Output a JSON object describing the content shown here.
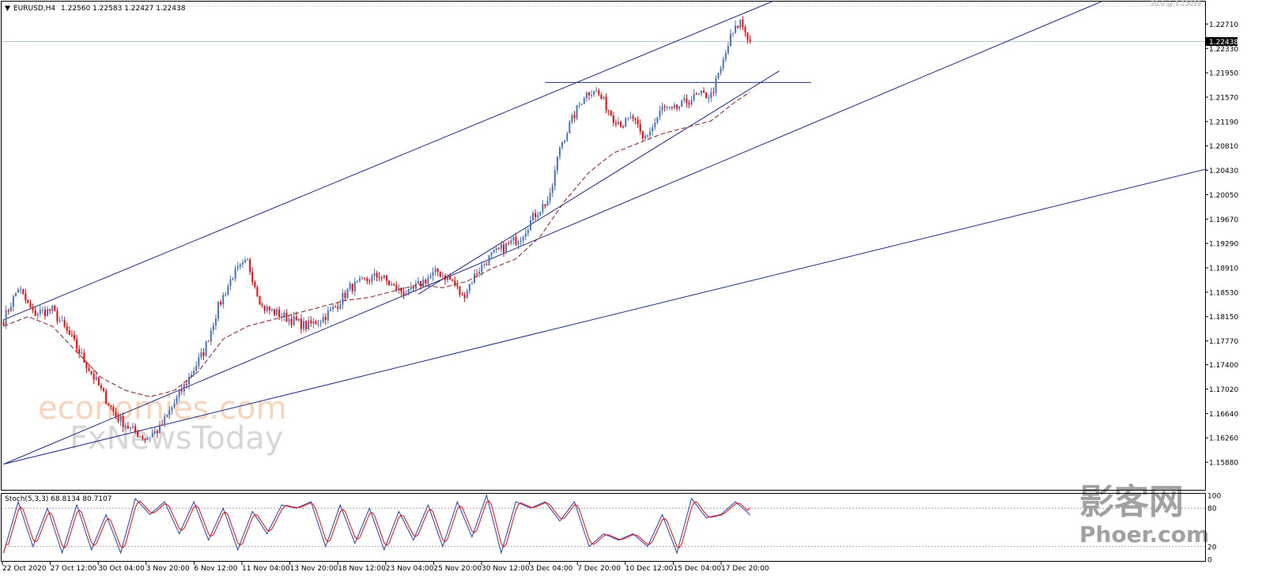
{
  "header": {
    "symbol_label": "EURUSD,H4",
    "ohlc": "1.22560 1.22583 1.22427 1.22438"
  },
  "fib_label": "50.0 @ 1.23059",
  "stoch": {
    "label": "Stoch(5,3,3) 68.8134 80.7107",
    "levels": [
      "100",
      "80",
      "20",
      "0"
    ]
  },
  "watermarks": {
    "brand1": "economies.com",
    "brand2": "FxNewsToday",
    "brand3": "影客网",
    "brand4": "Phoer.com"
  },
  "colors": {
    "bull": "#4472c4",
    "bear": "#ff0000",
    "trendline": "#1f2a8c",
    "ma": "#8b1a1a",
    "stoch_main": "#1f3fc8",
    "stoch_signal": "#ff0000",
    "current_price_bg": "#000000"
  },
  "chart_data": {
    "type": "candlestick",
    "symbol": "EURUSD",
    "timeframe": "H4",
    "last_price": "1.22438",
    "y_range": [
      1.1545,
      1.2306
    ],
    "y_ticks": [
      "1.22710",
      "1.22330",
      "1.21950",
      "1.21570",
      "1.21190",
      "1.20810",
      "1.20430",
      "1.20050",
      "1.19670",
      "1.19290",
      "1.18910",
      "1.18530",
      "1.18150",
      "1.17770",
      "1.17400",
      "1.17020",
      "1.16640",
      "1.16260",
      "1.15880"
    ],
    "x_ticks": [
      "22 Oct 2020",
      "27 Oct 12:00",
      "30 Oct 04:00",
      "3 Nov 20:00",
      "6 Nov 12:00",
      "11 Nov 04:00",
      "13 Nov 20:00",
      "18 Nov 12:00",
      "23 Nov 04:00",
      "25 Nov 20:00",
      "30 Nov 12:00",
      "3 Dec 04:00",
      "7 Dec 20:00",
      "10 Dec 12:00",
      "15 Dec 04:00",
      "17 Dec 20:00"
    ],
    "close_anchors": [
      [
        0,
        1.181
      ],
      [
        6,
        1.186
      ],
      [
        12,
        1.182
      ],
      [
        20,
        1.1825
      ],
      [
        28,
        1.178
      ],
      [
        34,
        1.174
      ],
      [
        40,
        1.17
      ],
      [
        46,
        1.166
      ],
      [
        52,
        1.164
      ],
      [
        58,
        1.1625
      ],
      [
        64,
        1.164
      ],
      [
        70,
        1.168
      ],
      [
        76,
        1.172
      ],
      [
        82,
        1.176
      ],
      [
        88,
        1.183
      ],
      [
        94,
        1.188
      ],
      [
        100,
        1.19
      ],
      [
        106,
        1.183
      ],
      [
        112,
        1.182
      ],
      [
        118,
        1.181
      ],
      [
        124,
        1.18
      ],
      [
        130,
        1.181
      ],
      [
        136,
        1.183
      ],
      [
        142,
        1.186
      ],
      [
        148,
        1.187
      ],
      [
        154,
        1.188
      ],
      [
        160,
        1.186
      ],
      [
        166,
        1.185
      ],
      [
        172,
        1.187
      ],
      [
        178,
        1.1885
      ],
      [
        184,
        1.187
      ],
      [
        188,
        1.1845
      ],
      [
        194,
        1.1885
      ],
      [
        200,
        1.191
      ],
      [
        206,
        1.1925
      ],
      [
        212,
        1.194
      ],
      [
        218,
        1.1975
      ],
      [
        224,
        1.2
      ],
      [
        228,
        1.208
      ],
      [
        234,
        1.213
      ],
      [
        238,
        1.216
      ],
      [
        242,
        1.217
      ],
      [
        246,
        1.215
      ],
      [
        250,
        1.2125
      ],
      [
        254,
        1.2115
      ],
      [
        258,
        1.2125
      ],
      [
        262,
        1.209
      ],
      [
        266,
        1.211
      ],
      [
        270,
        1.214
      ],
      [
        274,
        1.2135
      ],
      [
        278,
        1.2145
      ],
      [
        282,
        1.2155
      ],
      [
        286,
        1.216
      ],
      [
        290,
        1.216
      ],
      [
        294,
        1.22
      ],
      [
        298,
        1.225
      ],
      [
        302,
        1.2275
      ],
      [
        306,
        1.2244
      ]
    ],
    "moving_average": {
      "style": "dashed",
      "anchors": [
        [
          0,
          1.18
        ],
        [
          10,
          1.1815
        ],
        [
          20,
          1.18
        ],
        [
          30,
          1.176
        ],
        [
          40,
          1.172
        ],
        [
          50,
          1.17
        ],
        [
          60,
          1.169
        ],
        [
          70,
          1.17
        ],
        [
          80,
          1.173
        ],
        [
          90,
          1.178
        ],
        [
          100,
          1.18
        ],
        [
          110,
          1.181
        ],
        [
          120,
          1.182
        ],
        [
          130,
          1.183
        ],
        [
          140,
          1.184
        ],
        [
          150,
          1.1845
        ],
        [
          160,
          1.1855
        ],
        [
          170,
          1.1865
        ],
        [
          180,
          1.186
        ],
        [
          190,
          1.187
        ],
        [
          200,
          1.189
        ],
        [
          210,
          1.1905
        ],
        [
          220,
          1.194
        ],
        [
          230,
          1.1995
        ],
        [
          240,
          1.204
        ],
        [
          250,
          1.207
        ],
        [
          260,
          1.2085
        ],
        [
          270,
          1.21
        ],
        [
          280,
          1.211
        ],
        [
          290,
          1.212
        ],
        [
          300,
          1.215
        ],
        [
          306,
          1.2165
        ]
      ]
    },
    "trendlines": [
      {
        "name": "channel-upper",
        "from": [
          0,
          1.181
        ],
        "to": [
          315,
          1.2306
        ]
      },
      {
        "name": "channel-lower",
        "from": [
          0,
          1.1585
        ],
        "to": [
          450,
          1.2306
        ]
      },
      {
        "name": "long-support",
        "from": [
          0,
          1.1585
        ],
        "to": [
          493,
          1.2045
        ]
      },
      {
        "name": "short-support",
        "from": [
          170,
          1.185
        ],
        "to": [
          318,
          1.2198
        ]
      },
      {
        "name": "resistance",
        "from": [
          222,
          1.218
        ],
        "to": [
          331,
          1.218
        ]
      }
    ],
    "stochastic": {
      "params": "5,3,3",
      "main": 68.8134,
      "signal": 80.7107,
      "levels": [
        100,
        80,
        20,
        0
      ],
      "anchors": [
        [
          0,
          10
        ],
        [
          6,
          90
        ],
        [
          12,
          20
        ],
        [
          18,
          80
        ],
        [
          24,
          10
        ],
        [
          30,
          85
        ],
        [
          36,
          15
        ],
        [
          42,
          70
        ],
        [
          48,
          10
        ],
        [
          54,
          95
        ],
        [
          60,
          70
        ],
        [
          66,
          90
        ],
        [
          72,
          40
        ],
        [
          78,
          90
        ],
        [
          84,
          30
        ],
        [
          90,
          80
        ],
        [
          96,
          15
        ],
        [
          102,
          75
        ],
        [
          108,
          40
        ],
        [
          114,
          85
        ],
        [
          120,
          80
        ],
        [
          126,
          90
        ],
        [
          132,
          20
        ],
        [
          138,
          85
        ],
        [
          144,
          25
        ],
        [
          150,
          80
        ],
        [
          156,
          15
        ],
        [
          162,
          75
        ],
        [
          168,
          30
        ],
        [
          174,
          85
        ],
        [
          180,
          20
        ],
        [
          186,
          90
        ],
        [
          192,
          35
        ],
        [
          198,
          100
        ],
        [
          204,
          10
        ],
        [
          210,
          90
        ],
        [
          216,
          80
        ],
        [
          222,
          90
        ],
        [
          228,
          60
        ],
        [
          234,
          90
        ],
        [
          240,
          20
        ],
        [
          246,
          40
        ],
        [
          252,
          30
        ],
        [
          258,
          40
        ],
        [
          264,
          20
        ],
        [
          270,
          70
        ],
        [
          276,
          10
        ],
        [
          282,
          95
        ],
        [
          288,
          65
        ],
        [
          294,
          70
        ],
        [
          300,
          90
        ],
        [
          306,
          70
        ]
      ]
    }
  }
}
